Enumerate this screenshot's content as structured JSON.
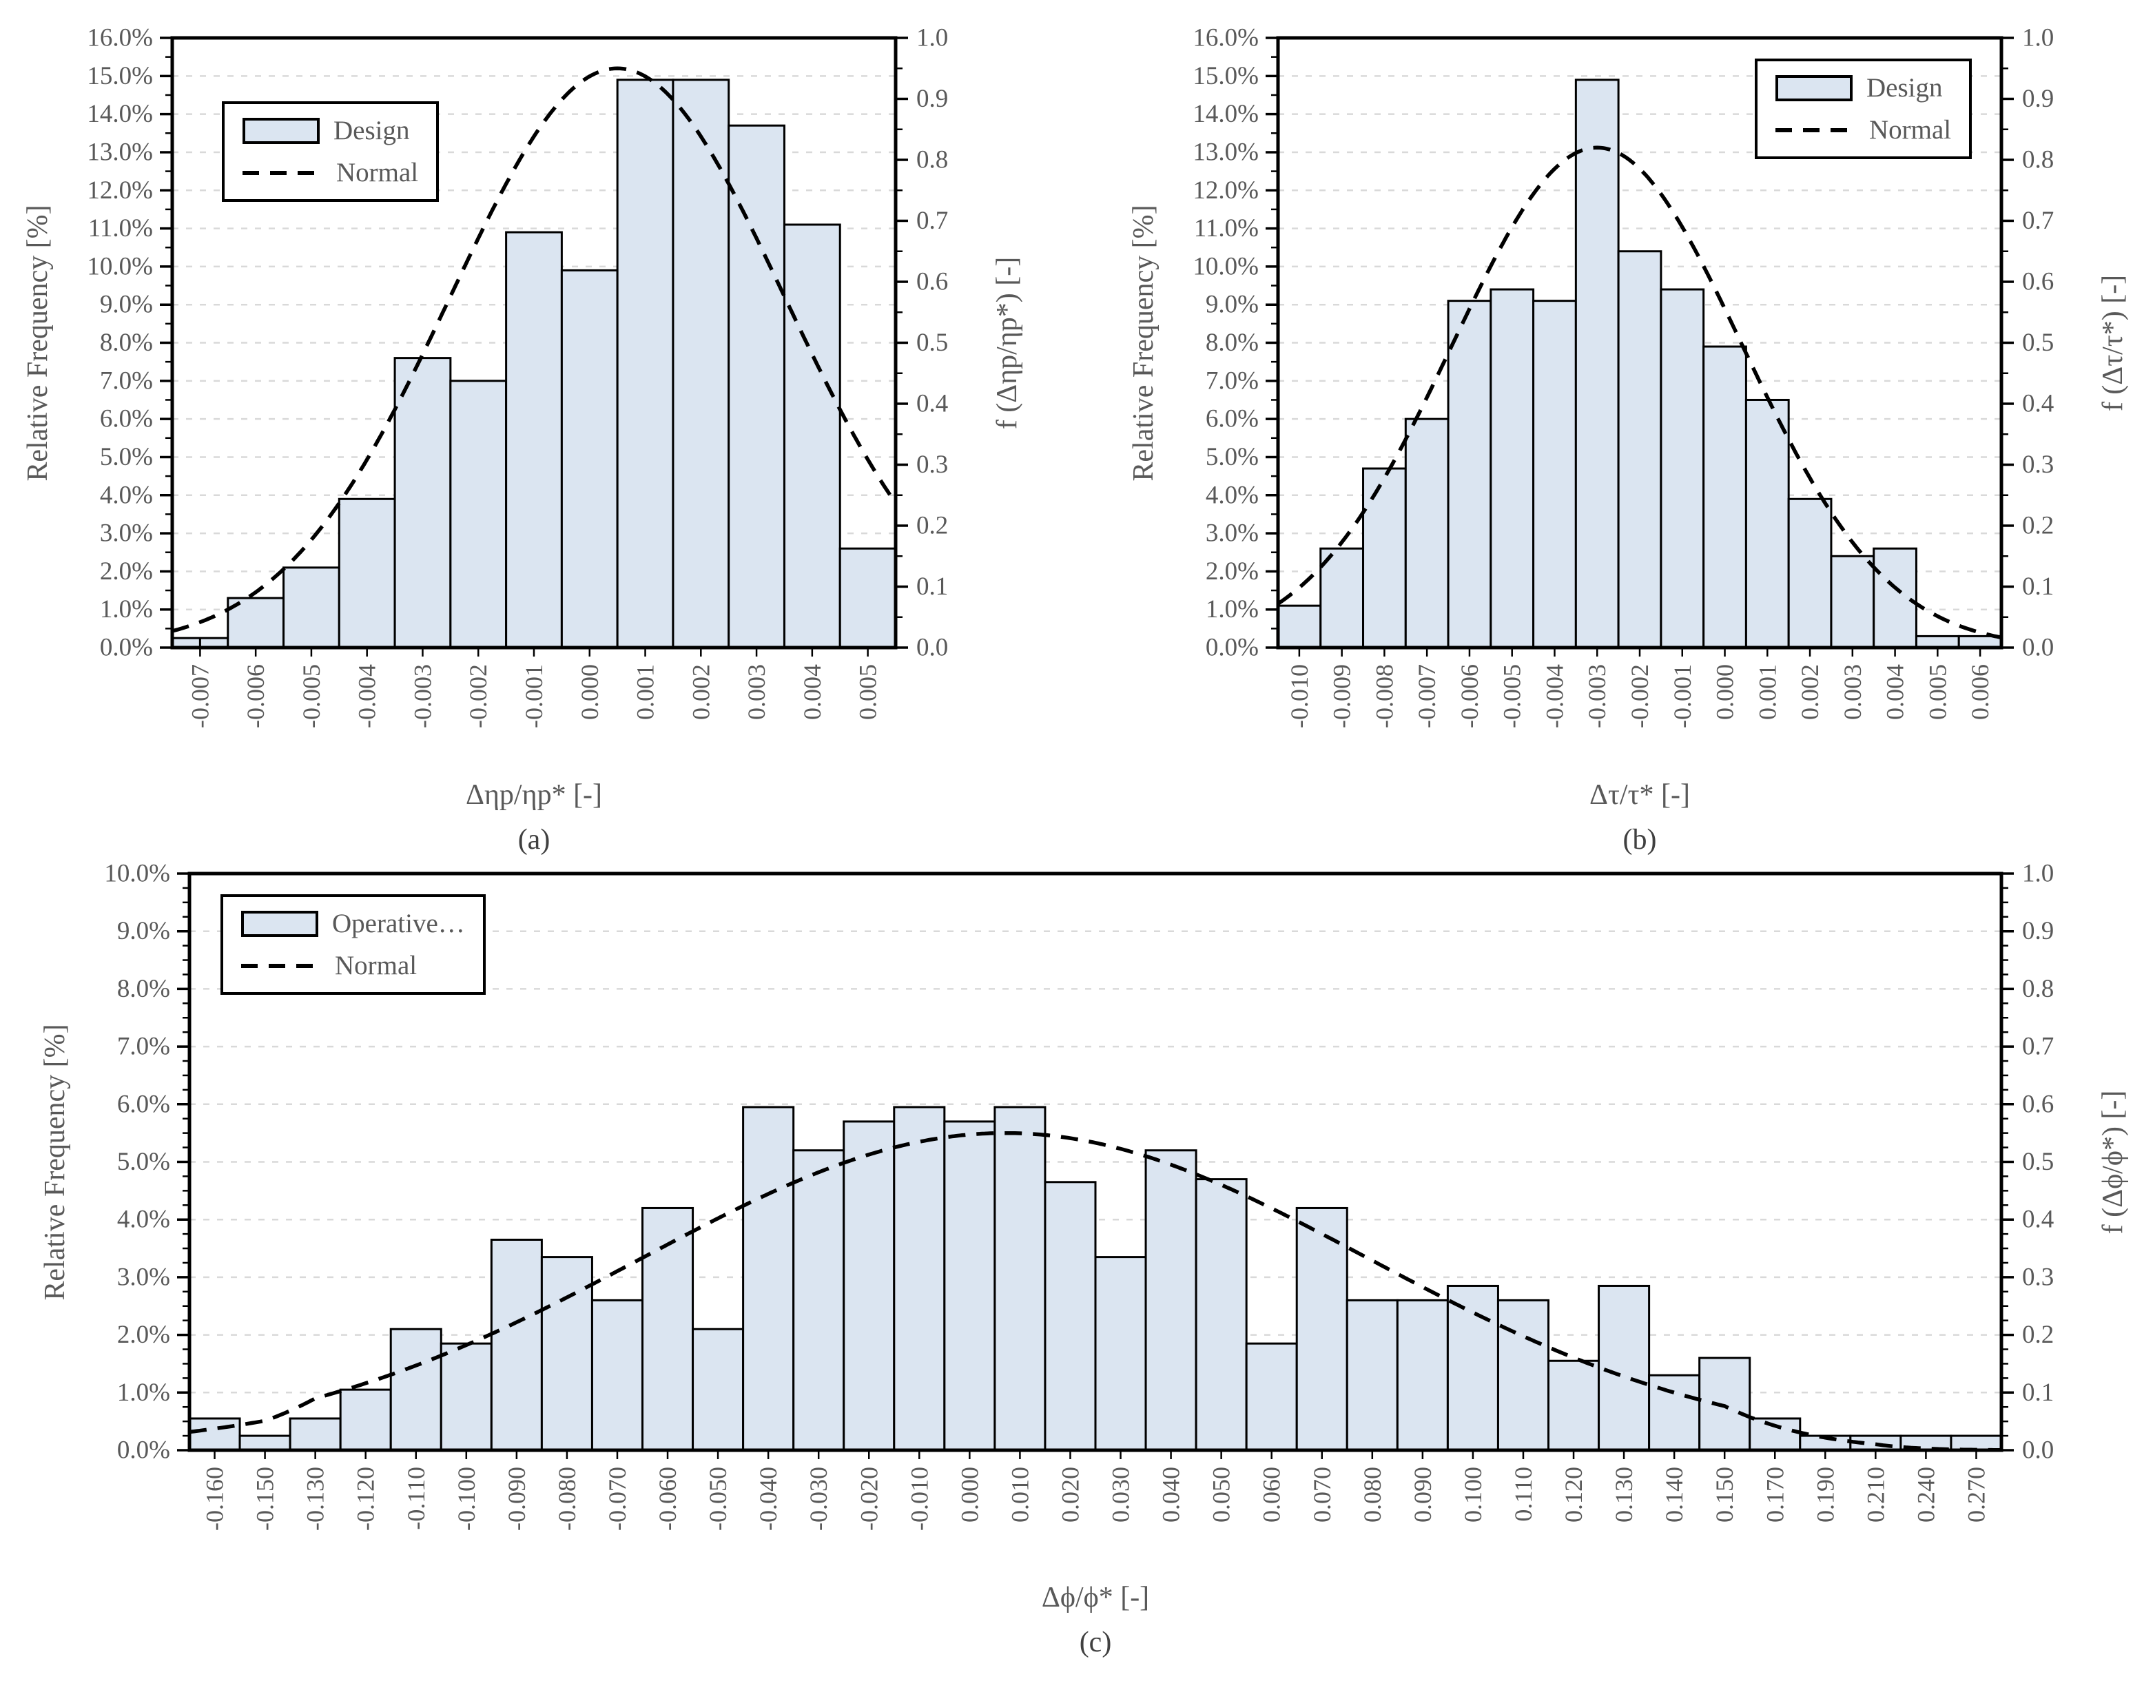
{
  "figure": {
    "background": "#ffffff"
  },
  "style": {
    "bar_fill": "#dbe5f1",
    "bar_stroke": "#000000",
    "grid_color": "#d9d9d9",
    "axis_color": "#000000",
    "tick_label_color": "#595959",
    "title_color": "#595959",
    "caption_color": "#404040",
    "curve_color": "#000000"
  },
  "chart_data": [
    {
      "id": "a",
      "type": "bar",
      "subtype": "histogram-with-normal-curve",
      "caption": "(a)",
      "x_axis_title": "Δηp/ηp* [-]",
      "y_left_title": "Relative Frequency [%]",
      "y_right_title": "f (Δηp/ηp*) [-]",
      "legend": {
        "bar_label": "Design",
        "line_label": "Normal",
        "position": "top-left"
      },
      "y_left": {
        "min": 0,
        "max": 16,
        "major_step": 1,
        "minor_step": 0.5,
        "format": "percent"
      },
      "y_right": {
        "min": 0,
        "max": 1,
        "major_step": 0.1,
        "minor_step": 0.05,
        "format": "decimal"
      },
      "categories": [
        "-0.007",
        "-0.006",
        "-0.005",
        "-0.004",
        "-0.003",
        "-0.002",
        "-0.001",
        "0.000",
        "0.001",
        "0.002",
        "0.003",
        "0.004",
        "0.005"
      ],
      "values": [
        0.25,
        1.3,
        2.1,
        3.9,
        7.6,
        7.0,
        10.9,
        9.9,
        14.9,
        14.9,
        13.7,
        11.1,
        2.6
      ],
      "first_bar_split": true,
      "normal_curve": {
        "peak": 0.95,
        "mean": 0.0005,
        "sigma": 0.003
      },
      "grid": true
    },
    {
      "id": "b",
      "type": "bar",
      "subtype": "histogram-with-normal-curve",
      "caption": "(b)",
      "x_axis_title": "Δτ/τ* [-]",
      "y_left_title": "Relative Frequency [%]",
      "y_right_title": "f (Δτ/τ*) [-]",
      "legend": {
        "bar_label": "Design",
        "line_label": "Normal",
        "position": "top-right"
      },
      "y_left": {
        "min": 0,
        "max": 16,
        "major_step": 1,
        "minor_step": 0.5,
        "format": "percent"
      },
      "y_right": {
        "min": 0,
        "max": 1,
        "major_step": 0.1,
        "minor_step": 0.05,
        "format": "decimal"
      },
      "categories": [
        "-0.010",
        "-0.009",
        "-0.008",
        "-0.007",
        "-0.006",
        "-0.005",
        "-0.004",
        "-0.003",
        "-0.002",
        "-0.001",
        "0.000",
        "0.001",
        "0.002",
        "0.003",
        "0.004",
        "0.005",
        "0.006"
      ],
      "values": [
        1.1,
        2.6,
        4.7,
        6.0,
        9.1,
        9.4,
        9.1,
        14.9,
        10.4,
        9.4,
        7.9,
        6.5,
        3.9,
        2.4,
        2.6,
        0.3,
        0.3
      ],
      "first_bar_split": false,
      "normal_curve": {
        "peak": 0.82,
        "mean": -0.003,
        "sigma": 0.0034
      },
      "grid": true
    },
    {
      "id": "c",
      "type": "bar",
      "subtype": "histogram-with-normal-curve",
      "caption": "(c)",
      "x_axis_title": "Δϕ/ϕ* [-]",
      "y_left_title": "Relative Frequency [%]",
      "y_right_title": "f (Δϕ/ϕ*) [-]",
      "legend": {
        "bar_label": "Operative…",
        "line_label": "Normal",
        "position": "top-left"
      },
      "y_left": {
        "min": 0,
        "max": 10,
        "major_step": 1,
        "minor_step": 0.25,
        "format": "percent"
      },
      "y_right": {
        "min": 0,
        "max": 1,
        "major_step": 0.1,
        "minor_step": 0.025,
        "format": "decimal"
      },
      "categories": [
        "-0.160",
        "-0.150",
        "-0.130",
        "-0.120",
        "-0.110",
        "-0.100",
        "-0.090",
        "-0.080",
        "-0.070",
        "-0.060",
        "-0.050",
        "-0.040",
        "-0.030",
        "-0.020",
        "-0.010",
        "0.000",
        "0.010",
        "0.020",
        "0.030",
        "0.040",
        "0.050",
        "0.060",
        "0.070",
        "0.080",
        "0.090",
        "0.100",
        "0.110",
        "0.120",
        "0.130",
        "0.140",
        "0.150",
        "0.170",
        "0.190",
        "0.210",
        "0.240",
        "0.270"
      ],
      "values": [
        0.55,
        0.25,
        0.55,
        1.05,
        2.1,
        1.85,
        3.65,
        3.35,
        2.6,
        4.2,
        2.1,
        5.95,
        5.2,
        5.7,
        5.95,
        5.7,
        5.95,
        4.65,
        3.35,
        5.2,
        4.7,
        1.85,
        4.2,
        2.6,
        2.6,
        2.85,
        2.6,
        1.55,
        2.85,
        1.3,
        1.6,
        0.55,
        0.25,
        0.25,
        0.25,
        0.25
      ],
      "first_bar_split": false,
      "normal_curve": {
        "peak": 0.55,
        "mean": 0.007,
        "sigma": 0.072
      },
      "grid": true
    }
  ]
}
